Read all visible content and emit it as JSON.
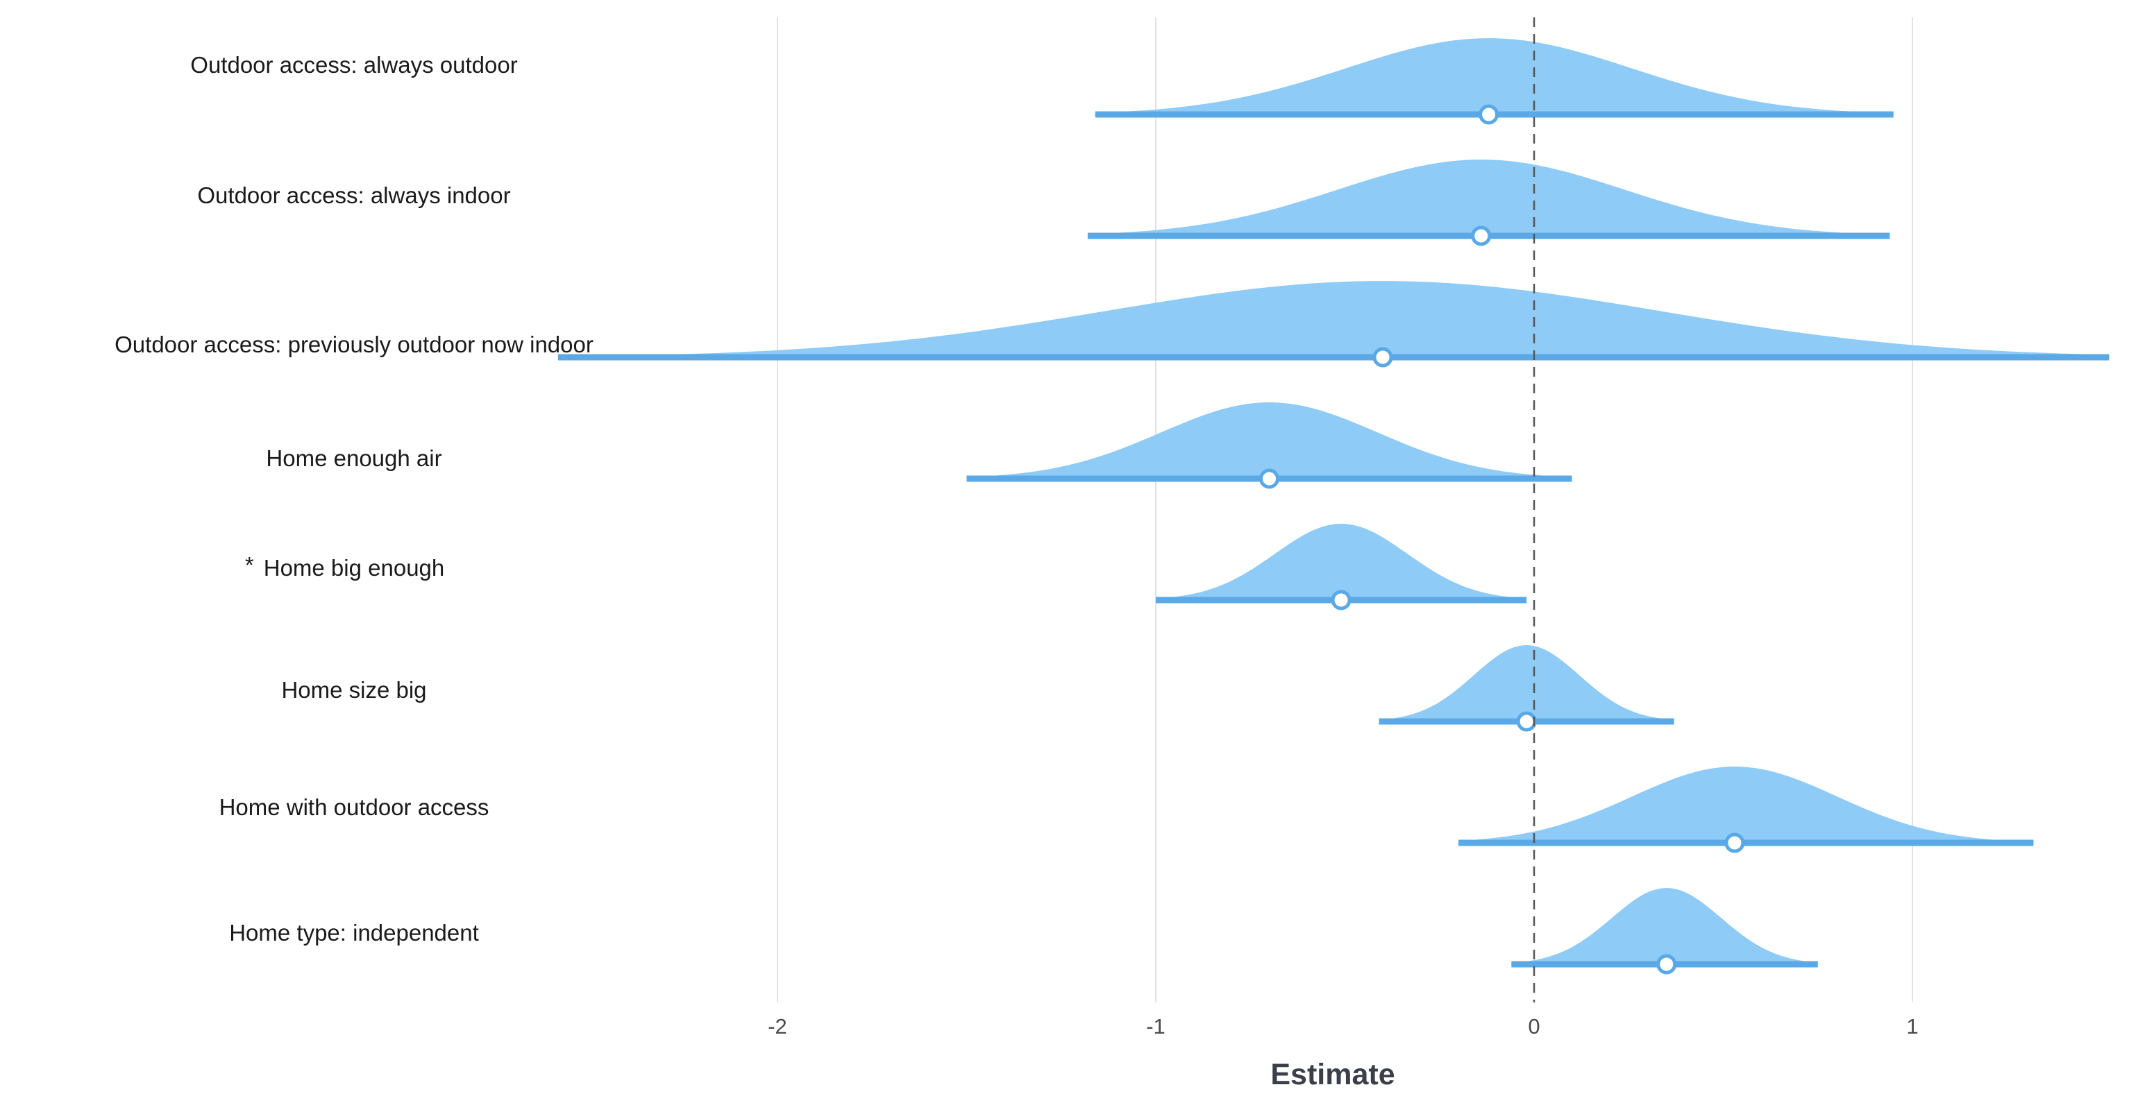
{
  "chart_data": {
    "type": "halfeye",
    "xlabel": "Estimate",
    "xlim": [
      -2.6,
      1.53
    ],
    "xticks": [
      -2,
      -1,
      0,
      1
    ],
    "reference_line": 0,
    "grid": "vertical",
    "colors": {
      "density": "#8ecbf7",
      "interval": "#5aa9e6",
      "point_fill": "#ffffff",
      "zero_line": "#555555"
    },
    "rows": [
      {
        "label": "Outdoor access: always outdoor",
        "marker": "",
        "estimate": -0.12,
        "lower": -1.16,
        "upper": 0.95
      },
      {
        "label": "Outdoor access: always indoor",
        "marker": "",
        "estimate": -0.14,
        "lower": -1.18,
        "upper": 0.94
      },
      {
        "label": "Outdoor access: previously outdoor now indoor",
        "marker": "",
        "estimate": -0.4,
        "lower": -2.58,
        "upper": 1.52
      },
      {
        "label": "Home enough air",
        "marker": "",
        "estimate": -0.7,
        "lower": -1.5,
        "upper": 0.1
      },
      {
        "label": "Home big enough",
        "marker": "*",
        "estimate": -0.51,
        "lower": -1.0,
        "upper": -0.02
      },
      {
        "label": "Home size big",
        "marker": "",
        "estimate": -0.02,
        "lower": -0.41,
        "upper": 0.37
      },
      {
        "label": "Home with outdoor access",
        "marker": "",
        "estimate": 0.53,
        "lower": -0.2,
        "upper": 1.32
      },
      {
        "label": "Home type: independent",
        "marker": "",
        "estimate": 0.35,
        "lower": -0.06,
        "upper": 0.75
      }
    ]
  }
}
